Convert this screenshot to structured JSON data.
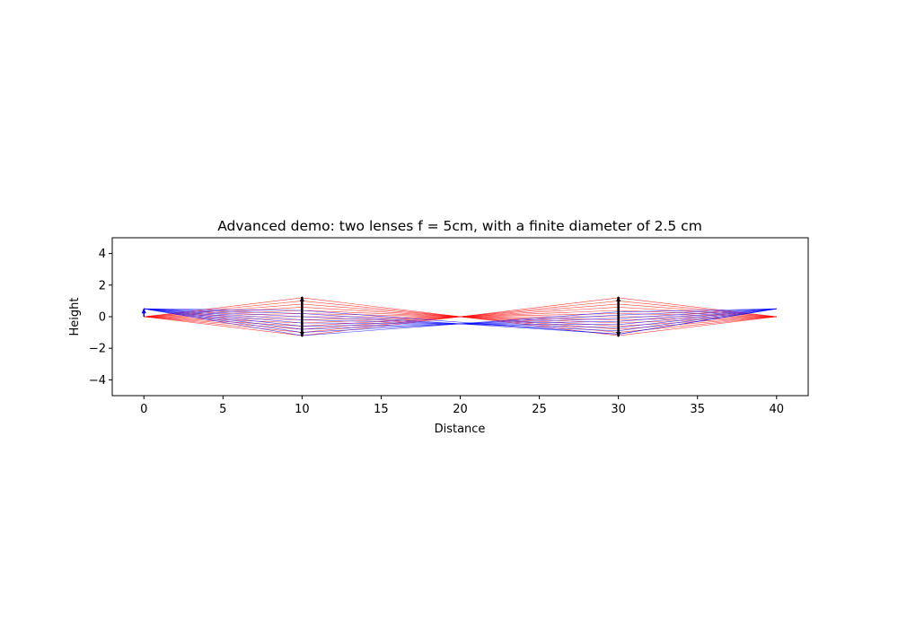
{
  "chart_data": {
    "type": "line",
    "title": "Advanced demo: two lenses f = 5cm, with a finite diameter of 2.5 cm",
    "xlabel": "Distance",
    "ylabel": "Height",
    "xlim": [
      -2,
      42
    ],
    "ylim": [
      -5,
      5
    ],
    "xticks": [
      0,
      5,
      10,
      15,
      20,
      25,
      30,
      35,
      40
    ],
    "yticks": [
      4,
      2,
      0,
      -2,
      -4
    ],
    "grid": false,
    "object": {
      "x": 0,
      "y_from": 0.0,
      "y_to": 0.5
    },
    "lenses": [
      {
        "position": 10,
        "focal_length": 5,
        "diameter": 2.5
      },
      {
        "position": 30,
        "focal_length": 5,
        "diameter": 2.5
      }
    ],
    "series": [
      {
        "color": "#ff0000",
        "object_height": 0.0,
        "lens1_heights": [
          -1.2,
          -1.0,
          -0.8,
          -0.6,
          -0.4,
          -0.2,
          0.0,
          0.2,
          0.4,
          0.6,
          0.8,
          1.0,
          1.2
        ],
        "lens2_heights": [
          1.2,
          1.0,
          0.8,
          0.6,
          0.4,
          0.2,
          0.0,
          -0.2,
          -0.4,
          -0.6,
          -0.8,
          -1.0,
          -1.2
        ],
        "focus_1": [
          20,
          0.0
        ],
        "image_height": 0.0
      },
      {
        "color": "#0000ff",
        "object_height": 0.5,
        "lens1_heights": [
          -1.2,
          -1.0,
          -0.8,
          -0.6,
          -0.4,
          -0.2,
          0.0,
          0.2,
          0.4
        ],
        "lens2_heights": [
          0.3,
          0.1,
          -0.1,
          -0.3,
          -0.5,
          -0.7,
          -0.9,
          -1.1
        ],
        "focus_1": [
          20,
          -0.5
        ],
        "image_height": 0.5
      }
    ]
  }
}
